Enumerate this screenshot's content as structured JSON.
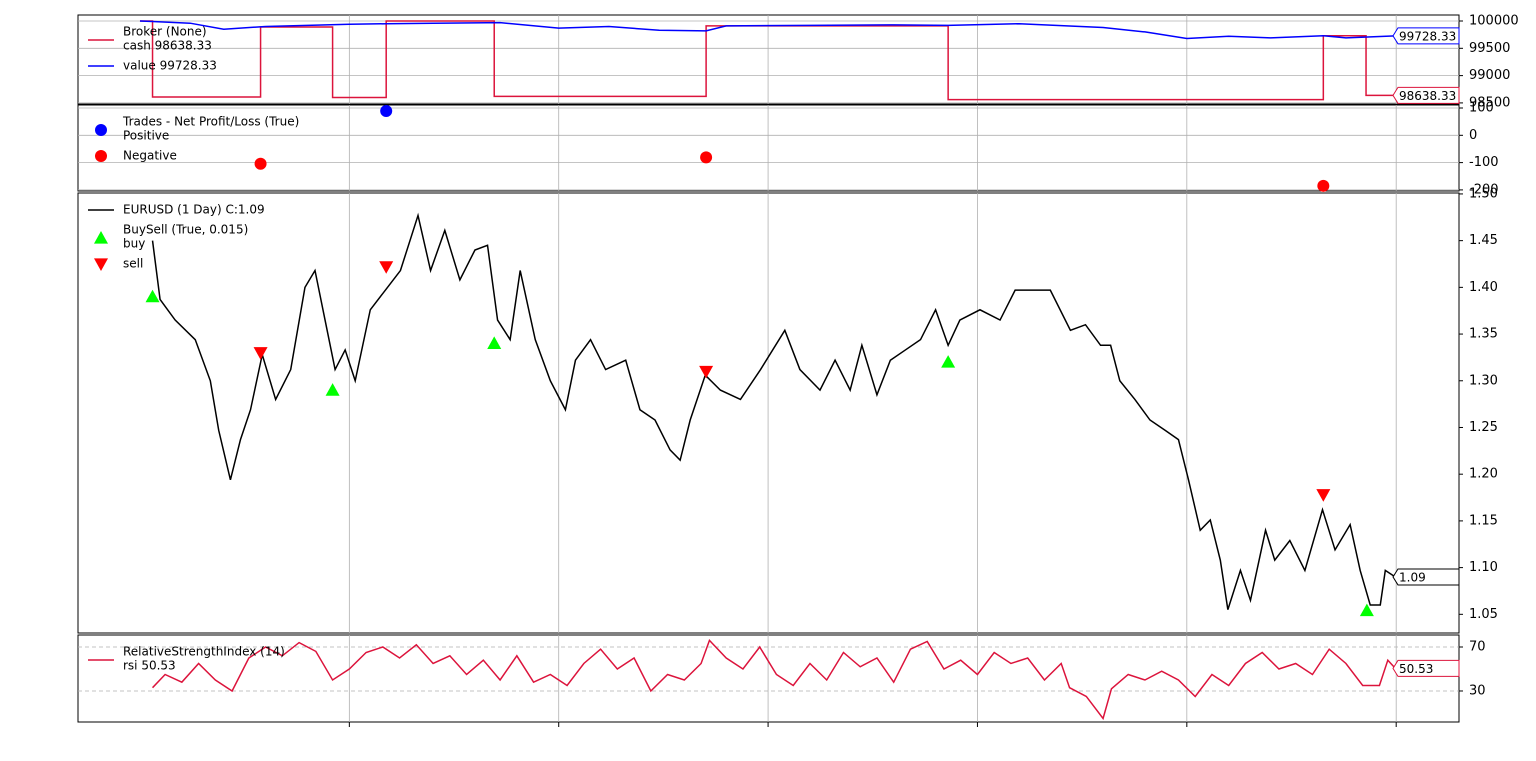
{
  "chart_data": [
    {
      "type": "line",
      "xlim": [
        -74,
        1575
      ],
      "xticks": [
        250,
        500,
        750,
        1000,
        1250,
        1500
      ],
      "ylim": [
        98480,
        100110
      ],
      "yticks": [
        98500,
        99000,
        99500,
        100000
      ],
      "grid": "both",
      "series": [
        {
          "group": "Broker (None)",
          "name": "cash 98638.33",
          "color": "#dc143c",
          "last_label": true,
          "x": [
            0,
            15,
            15,
            144,
            144,
            230,
            230,
            294,
            294,
            423,
            423,
            676,
            676,
            965,
            965,
            1413,
            1413,
            1464,
            1464,
            1499
          ],
          "values": [
            100000,
            100000,
            98608,
            98608,
            99890,
            99890,
            98600,
            98600,
            100000,
            100000,
            98620,
            98620,
            99910,
            99910,
            98560,
            98560,
            99730,
            99730,
            98638.33,
            98638.33
          ]
        },
        {
          "name": "value 99728.33",
          "color": "#0000ff",
          "last_label": true,
          "x": [
            0,
            15,
            60,
            100,
            150,
            200,
            250,
            294,
            350,
            430,
            500,
            560,
            620,
            676,
            700,
            800,
            900,
            965,
            1050,
            1150,
            1200,
            1250,
            1300,
            1350,
            1413,
            1440,
            1499
          ],
          "values": [
            100000,
            99990,
            99960,
            99850,
            99900,
            99920,
            99940,
            99950,
            99960,
            99970,
            99870,
            99900,
            99830,
            99820,
            99910,
            99920,
            99930,
            99920,
            99950,
            99880,
            99800,
            99680,
            99720,
            99690,
            99730,
            99690,
            99728.33
          ]
        }
      ]
    },
    {
      "type": "scatter",
      "xlim": [
        -74,
        1575
      ],
      "xticks": [
        250,
        500,
        750,
        1000,
        1250,
        1500
      ],
      "ylim": [
        -204,
        111
      ],
      "yticks": [
        -200,
        -100,
        0,
        100
      ],
      "grid": "both",
      "series": [
        {
          "group": "Trades - Net Profit/Loss (True)",
          "name": "Positive",
          "color": "#0000ff",
          "marker": "o",
          "x": [
            294
          ],
          "values": [
            89
          ]
        },
        {
          "name": "Negative",
          "color": "#ff0000",
          "marker": "o",
          "x": [
            144,
            676,
            1413
          ],
          "values": [
            -104,
            -81,
            -185
          ]
        }
      ]
    },
    {
      "type": "line",
      "xlim": [
        -74,
        1575
      ],
      "xticks": [
        250,
        500,
        750,
        1000,
        1250,
        1500
      ],
      "ylim": [
        1.03,
        1.501
      ],
      "grid": "x",
      "yticks": [
        1.05,
        {
          "value": 1.1,
          "label": "1.10"
        },
        1.15,
        {
          "value": 1.2,
          "label": "1.20"
        },
        1.25,
        {
          "value": 1.3,
          "label": "1.30"
        },
        1.35,
        {
          "value": 1.4,
          "label": "1.40"
        },
        1.45,
        {
          "value": 1.5,
          "label": "1.50"
        }
      ],
      "series": [
        {
          "name": "EURUSD (1 Day) C:1.09",
          "color": "#000000",
          "last_label": true,
          "x": [
            15,
            24,
            42,
            66,
            84,
            94,
            108,
            120,
            132,
            146,
            162,
            180,
            197,
            209,
            221,
            233,
            245,
            257,
            275,
            293,
            311,
            332,
            347,
            364,
            382,
            400,
            415,
            427,
            442,
            454,
            472,
            490,
            508,
            520,
            538,
            556,
            580,
            597,
            615,
            633,
            645,
            657,
            675,
            693,
            717,
            741,
            770,
            788,
            812,
            830,
            848,
            862,
            880,
            896,
            914,
            932,
            950,
            965,
            979,
            1003,
            1027,
            1045,
            1069,
            1087,
            1111,
            1129,
            1147,
            1159,
            1170,
            1188,
            1206,
            1224,
            1240,
            1252,
            1266,
            1278,
            1290,
            1299,
            1314,
            1326,
            1344,
            1355,
            1373,
            1391,
            1412,
            1427,
            1445,
            1457,
            1469,
            1481,
            1487,
            1499
          ],
          "values": [
            1.45,
            1.387,
            1.365,
            1.344,
            1.3,
            1.247,
            1.194,
            1.237,
            1.269,
            1.328,
            1.28,
            1.312,
            1.4,
            1.418,
            1.365,
            1.312,
            1.333,
            1.3,
            1.376,
            1.397,
            1.418,
            1.477,
            1.418,
            1.461,
            1.408,
            1.44,
            1.445,
            1.365,
            1.344,
            1.418,
            1.344,
            1.3,
            1.269,
            1.322,
            1.344,
            1.312,
            1.322,
            1.269,
            1.258,
            1.226,
            1.215,
            1.258,
            1.306,
            1.29,
            1.28,
            1.312,
            1.354,
            1.312,
            1.29,
            1.322,
            1.29,
            1.338,
            1.285,
            1.322,
            1.333,
            1.344,
            1.376,
            1.338,
            1.365,
            1.376,
            1.365,
            1.397,
            1.397,
            1.397,
            1.354,
            1.36,
            1.338,
            1.338,
            1.3,
            1.28,
            1.258,
            1.247,
            1.237,
            1.194,
            1.14,
            1.151,
            1.108,
            1.055,
            1.097,
            1.065,
            1.14,
            1.108,
            1.129,
            1.097,
            1.162,
            1.119,
            1.146,
            1.097,
            1.06,
            1.06,
            1.097,
            1.09
          ]
        },
        {
          "group": "BuySell (True, 0.015)",
          "name": "buy",
          "color": "#00ff00",
          "marker": "^",
          "x": [
            15,
            230,
            423,
            965,
            1465
          ],
          "values": [
            1.39,
            1.29,
            1.34,
            1.32,
            1.054
          ]
        },
        {
          "name": "sell",
          "color": "#ff0000",
          "marker": "v",
          "x": [
            144,
            294,
            676,
            1413
          ],
          "values": [
            1.33,
            1.422,
            1.31,
            1.178
          ]
        }
      ]
    },
    {
      "type": "line",
      "xlim": [
        -74,
        1575
      ],
      "xticks": [
        250,
        500,
        750,
        1000,
        1250,
        1500
      ],
      "ylim": [
        1.8,
        80.9
      ],
      "yticks": [
        30,
        70
      ],
      "grid": "both",
      "grid_dash": true,
      "series": [
        {
          "group": "RelativeStrengthIndex (14)",
          "name": "rsi 50.53",
          "color": "#dc143c",
          "last_label": true,
          "x": [
            15,
            30,
            50,
            70,
            90,
            110,
            130,
            150,
            170,
            190,
            210,
            230,
            250,
            270,
            290,
            310,
            330,
            350,
            370,
            390,
            410,
            430,
            450,
            470,
            490,
            510,
            530,
            550,
            570,
            590,
            610,
            630,
            650,
            670,
            680,
            700,
            720,
            740,
            760,
            780,
            800,
            820,
            840,
            860,
            880,
            900,
            920,
            940,
            960,
            980,
            1000,
            1020,
            1040,
            1060,
            1080,
            1100,
            1110,
            1130,
            1150,
            1160,
            1180,
            1200,
            1220,
            1240,
            1260,
            1280,
            1300,
            1320,
            1340,
            1360,
            1380,
            1400,
            1420,
            1440,
            1460,
            1480,
            1490,
            1499
          ],
          "values": [
            33,
            45,
            38,
            55,
            40,
            30,
            60,
            70,
            62,
            74,
            66,
            40,
            50,
            65,
            70,
            60,
            72,
            55,
            62,
            45,
            58,
            40,
            62,
            38,
            45,
            35,
            55,
            68,
            50,
            60,
            30,
            45,
            40,
            55,
            76,
            60,
            50,
            70,
            45,
            35,
            55,
            40,
            65,
            52,
            60,
            38,
            68,
            75,
            50,
            58,
            45,
            65,
            55,
            60,
            40,
            55,
            33,
            25,
            5,
            32,
            45,
            40,
            48,
            40,
            25,
            45,
            35,
            55,
            65,
            50,
            55,
            45,
            68,
            55,
            35,
            35,
            58,
            50.53
          ]
        }
      ]
    }
  ]
}
